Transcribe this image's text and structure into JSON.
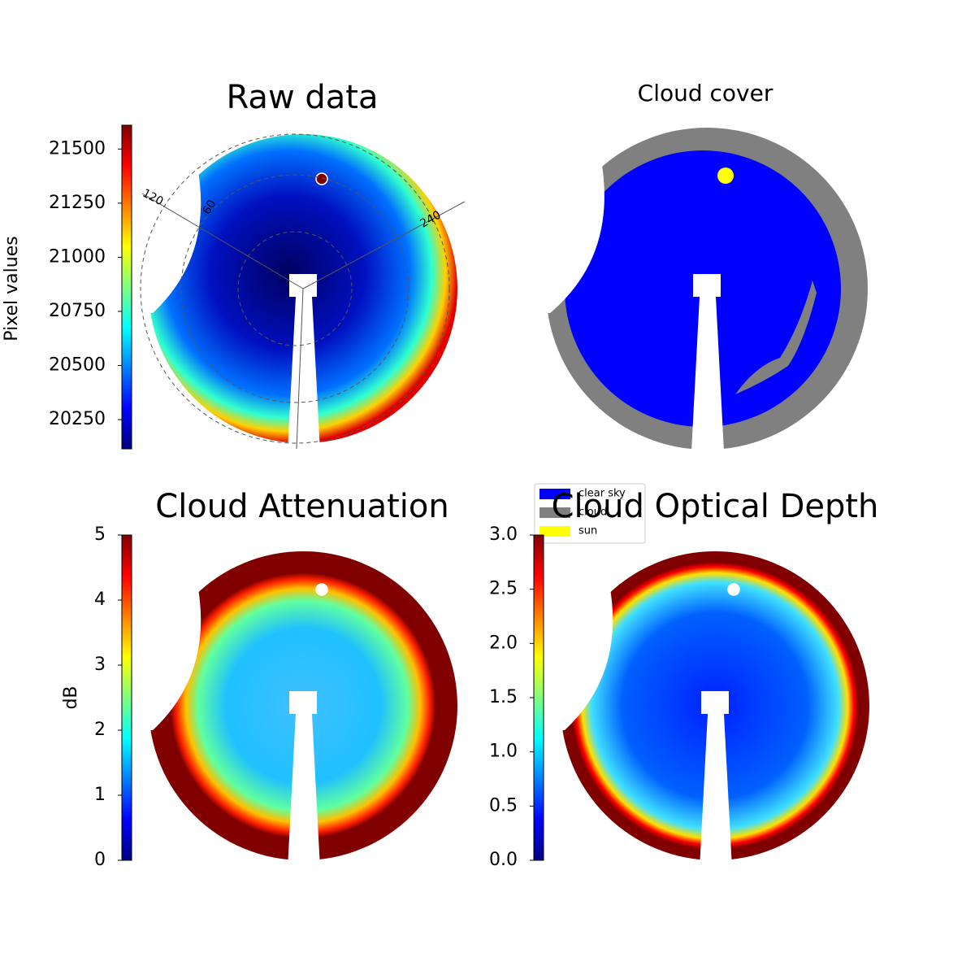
{
  "chart_data": [
    {
      "type": "image",
      "title": "Raw data",
      "colorbar_label": "Pixel values",
      "colormap": "jet",
      "ylim": [
        20115,
        21610
      ],
      "yticks": [
        20250,
        20500,
        20750,
        21000,
        21250,
        21500
      ],
      "annotations": [
        "120",
        "60",
        "240"
      ]
    },
    {
      "type": "classification",
      "title": "Cloud cover",
      "legend": [
        {
          "name": "clear sky",
          "color": "#0000ff"
        },
        {
          "name": "cloud",
          "color": "#808080"
        },
        {
          "name": "sun",
          "color": "#ffff00"
        }
      ]
    },
    {
      "type": "image",
      "title": "Cloud Attenuation",
      "colorbar_label": "dB",
      "colormap": "jet",
      "ylim": [
        0,
        5
      ],
      "yticks": [
        0,
        1,
        2,
        3,
        4,
        5
      ]
    },
    {
      "type": "image",
      "title": "Cloud Optical Depth",
      "colormap": "jet",
      "ylim": [
        0,
        3
      ],
      "yticks": [
        {
          "value": 0,
          "label": "0.0"
        },
        0.5,
        {
          "value": 1,
          "label": "1.0"
        },
        1.5,
        {
          "value": 2,
          "label": "2.0"
        },
        2.5,
        {
          "value": 3,
          "label": "3.0"
        }
      ]
    }
  ]
}
